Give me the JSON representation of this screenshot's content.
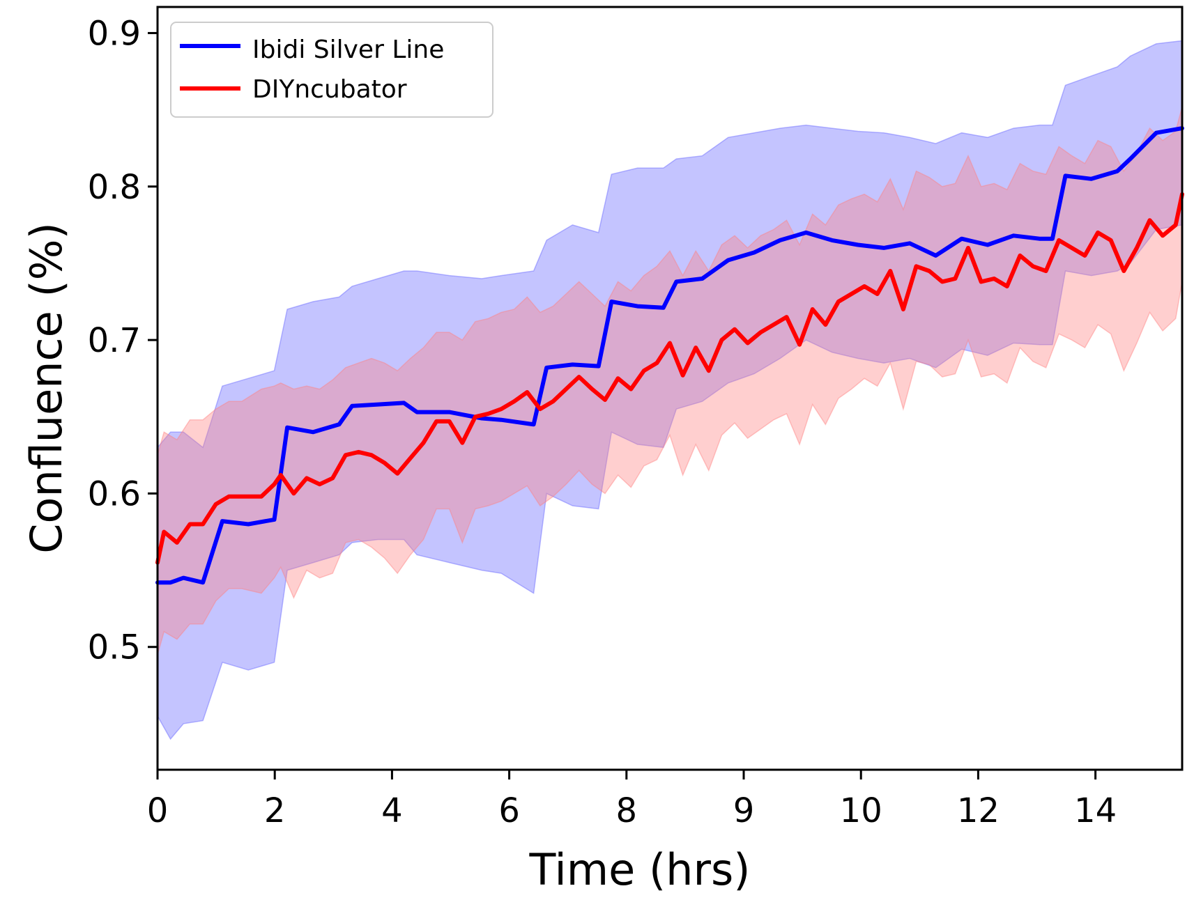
{
  "chart_data": {
    "type": "line",
    "title": "",
    "xlabel": "Time (hrs)",
    "ylabel": "Confluence (%)",
    "xlim": [
      0,
      15.8
    ],
    "ylim": [
      0.42,
      0.917
    ],
    "x_tick_labels": [
      "0",
      "2",
      "4",
      "6",
      "8",
      "9",
      "10",
      "12",
      "14"
    ],
    "y_ticks": [
      0.5,
      0.6,
      0.7,
      0.8,
      0.9
    ],
    "y_tick_labels": [
      "0.5",
      "0.6",
      "0.7",
      "0.8",
      "0.9"
    ],
    "grid": false,
    "legend_position": "top-left",
    "series": [
      {
        "name": "Ibidi Silver Line",
        "color": "#0000ff",
        "band_color": "#6464ff",
        "x": [
          0,
          0.2,
          0.4,
          0.7,
          1.0,
          1.4,
          1.8,
          2.0,
          2.4,
          2.8,
          3.0,
          3.4,
          3.8,
          4.0,
          4.5,
          5.0,
          5.3,
          5.8,
          6.0,
          6.4,
          6.8,
          7.0,
          7.4,
          7.8,
          8.0,
          8.4,
          8.8,
          9.2,
          9.6,
          10.0,
          10.4,
          10.8,
          11.2,
          11.6,
          12.0,
          12.4,
          12.8,
          13.2,
          13.6,
          13.8,
          14.0,
          14.4,
          14.8,
          15.0,
          15.4,
          15.8
        ],
        "mean": [
          0.542,
          0.542,
          0.545,
          0.542,
          0.582,
          0.58,
          0.583,
          0.643,
          0.64,
          0.645,
          0.657,
          0.658,
          0.659,
          0.653,
          0.653,
          0.649,
          0.648,
          0.645,
          0.682,
          0.684,
          0.683,
          0.725,
          0.722,
          0.721,
          0.738,
          0.74,
          0.752,
          0.757,
          0.765,
          0.77,
          0.765,
          0.762,
          0.76,
          0.763,
          0.755,
          0.766,
          0.762,
          0.768,
          0.766,
          0.766,
          0.807,
          0.805,
          0.81,
          0.818,
          0.835,
          0.838
        ],
        "upper": [
          0.63,
          0.64,
          0.64,
          0.63,
          0.67,
          0.675,
          0.68,
          0.72,
          0.725,
          0.728,
          0.735,
          0.74,
          0.745,
          0.745,
          0.742,
          0.74,
          0.742,
          0.745,
          0.765,
          0.775,
          0.77,
          0.808,
          0.812,
          0.812,
          0.818,
          0.82,
          0.832,
          0.835,
          0.838,
          0.84,
          0.838,
          0.836,
          0.835,
          0.832,
          0.828,
          0.835,
          0.832,
          0.838,
          0.84,
          0.84,
          0.866,
          0.872,
          0.878,
          0.885,
          0.893,
          0.895
        ],
        "lower": [
          0.455,
          0.44,
          0.45,
          0.452,
          0.49,
          0.485,
          0.49,
          0.55,
          0.555,
          0.56,
          0.568,
          0.57,
          0.57,
          0.56,
          0.555,
          0.55,
          0.548,
          0.535,
          0.6,
          0.592,
          0.59,
          0.64,
          0.632,
          0.63,
          0.655,
          0.66,
          0.672,
          0.678,
          0.688,
          0.7,
          0.692,
          0.688,
          0.685,
          0.688,
          0.682,
          0.694,
          0.69,
          0.698,
          0.697,
          0.697,
          0.745,
          0.742,
          0.745,
          0.75,
          0.772,
          0.775
        ]
      },
      {
        "name": "DIYncubator",
        "color": "#ff0000",
        "band_color": "#ff8080",
        "x": [
          0,
          0.1,
          0.3,
          0.5,
          0.7,
          0.9,
          1.1,
          1.3,
          1.6,
          1.8,
          1.9,
          2.1,
          2.3,
          2.5,
          2.7,
          2.9,
          3.1,
          3.3,
          3.5,
          3.7,
          3.9,
          4.1,
          4.3,
          4.5,
          4.7,
          4.9,
          5.1,
          5.3,
          5.5,
          5.7,
          5.9,
          6.1,
          6.3,
          6.5,
          6.7,
          6.9,
          7.1,
          7.3,
          7.5,
          7.7,
          7.9,
          8.1,
          8.3,
          8.5,
          8.7,
          8.9,
          9.1,
          9.3,
          9.5,
          9.7,
          9.9,
          10.1,
          10.3,
          10.5,
          10.7,
          10.9,
          11.1,
          11.3,
          11.5,
          11.7,
          11.9,
          12.1,
          12.3,
          12.5,
          12.7,
          12.9,
          13.1,
          13.3,
          13.5,
          13.7,
          13.9,
          14.1,
          14.3,
          14.5,
          14.7,
          14.9,
          15.1,
          15.3,
          15.5,
          15.7,
          15.8
        ],
        "mean": [
          0.555,
          0.575,
          0.568,
          0.58,
          0.58,
          0.593,
          0.598,
          0.598,
          0.598,
          0.606,
          0.612,
          0.6,
          0.61,
          0.606,
          0.61,
          0.625,
          0.627,
          0.625,
          0.62,
          0.613,
          0.623,
          0.633,
          0.647,
          0.647,
          0.633,
          0.65,
          0.652,
          0.655,
          0.66,
          0.666,
          0.655,
          0.66,
          0.668,
          0.676,
          0.668,
          0.661,
          0.675,
          0.668,
          0.68,
          0.685,
          0.698,
          0.677,
          0.695,
          0.68,
          0.7,
          0.707,
          0.698,
          0.705,
          0.71,
          0.715,
          0.697,
          0.72,
          0.71,
          0.725,
          0.73,
          0.735,
          0.73,
          0.745,
          0.72,
          0.748,
          0.745,
          0.738,
          0.74,
          0.76,
          0.738,
          0.74,
          0.735,
          0.755,
          0.748,
          0.745,
          0.765,
          0.76,
          0.755,
          0.77,
          0.765,
          0.745,
          0.76,
          0.778,
          0.768,
          0.775,
          0.795
        ],
        "upper": [
          0.625,
          0.64,
          0.635,
          0.648,
          0.648,
          0.655,
          0.66,
          0.66,
          0.668,
          0.67,
          0.672,
          0.668,
          0.67,
          0.668,
          0.674,
          0.682,
          0.685,
          0.688,
          0.685,
          0.68,
          0.688,
          0.695,
          0.705,
          0.705,
          0.7,
          0.712,
          0.714,
          0.718,
          0.72,
          0.728,
          0.718,
          0.722,
          0.73,
          0.738,
          0.73,
          0.722,
          0.738,
          0.732,
          0.742,
          0.748,
          0.758,
          0.742,
          0.758,
          0.745,
          0.762,
          0.768,
          0.76,
          0.768,
          0.772,
          0.778,
          0.762,
          0.782,
          0.775,
          0.788,
          0.792,
          0.795,
          0.79,
          0.805,
          0.785,
          0.81,
          0.806,
          0.8,
          0.802,
          0.82,
          0.8,
          0.802,
          0.798,
          0.815,
          0.81,
          0.808,
          0.826,
          0.82,
          0.815,
          0.83,
          0.826,
          0.81,
          0.822,
          0.838,
          0.83,
          0.836,
          0.852
        ],
        "lower": [
          0.495,
          0.51,
          0.505,
          0.515,
          0.515,
          0.53,
          0.538,
          0.538,
          0.535,
          0.545,
          0.552,
          0.532,
          0.55,
          0.545,
          0.548,
          0.568,
          0.57,
          0.565,
          0.558,
          0.548,
          0.56,
          0.57,
          0.59,
          0.59,
          0.568,
          0.59,
          0.592,
          0.595,
          0.6,
          0.605,
          0.592,
          0.598,
          0.606,
          0.615,
          0.606,
          0.6,
          0.612,
          0.604,
          0.618,
          0.622,
          0.638,
          0.612,
          0.632,
          0.615,
          0.638,
          0.646,
          0.636,
          0.642,
          0.648,
          0.652,
          0.632,
          0.658,
          0.645,
          0.662,
          0.668,
          0.675,
          0.67,
          0.685,
          0.655,
          0.686,
          0.684,
          0.676,
          0.678,
          0.7,
          0.676,
          0.678,
          0.672,
          0.695,
          0.686,
          0.682,
          0.704,
          0.7,
          0.695,
          0.71,
          0.704,
          0.68,
          0.698,
          0.718,
          0.706,
          0.714,
          0.738
        ]
      }
    ]
  }
}
